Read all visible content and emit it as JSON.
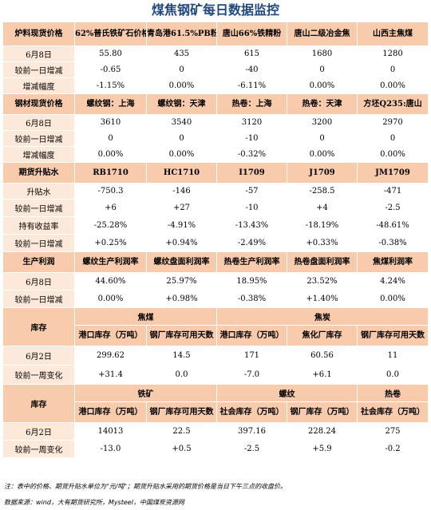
{
  "title": "煤焦钢矿每日数据监控",
  "spot1": {
    "header": [
      "炉料现货价格",
      "62%普氏铁矿石价格指数",
      "青岛港61.5%PB粉",
      "唐山66%铁精粉",
      "唐山二级冶金焦",
      "山西主焦煤"
    ],
    "rows": [
      [
        "6月8日",
        "55.80",
        "435",
        "615",
        "1680",
        "1280"
      ],
      [
        "较前一日增减",
        "-0.65",
        "0",
        "-40",
        "0",
        "0"
      ],
      [
        "增减幅度",
        "-1.15%",
        "0.00%",
        "-6.11%",
        "0.00%",
        "0.00%"
      ]
    ]
  },
  "spot2": {
    "header": [
      "钢材现货价格",
      "螺纹钢：上海",
      "螺纹钢：天津",
      "热卷：上海",
      "热卷：天津",
      "方坯Q235:唐山"
    ],
    "rows": [
      [
        "6月8日",
        "3610",
        "3540",
        "3120",
        "3200",
        "2970"
      ],
      [
        "较前一日增减",
        "0",
        "0",
        "-10",
        "0",
        "0"
      ],
      [
        "增减幅度",
        "0.00%",
        "0.00%",
        "-0.32%",
        "0.00%",
        "0.00%"
      ]
    ]
  },
  "futures": {
    "header": [
      "期货升贴水",
      "RB1710",
      "HC1710",
      "I1709",
      "J1709",
      "JM1709"
    ],
    "rows": [
      [
        "升贴水",
        "-750.3",
        "-146",
        "-57",
        "-258.5",
        "-471"
      ],
      [
        "较前一日增减",
        "+6",
        "+27",
        "-10",
        "+4",
        "-2.5"
      ],
      [
        "持有收益率",
        "-25.28%",
        "-4.91%",
        "-13.43%",
        "-18.19%",
        "-48.61%"
      ],
      [
        "较前一日增减",
        "+0.25%",
        "+0.94%",
        "-2.49%",
        "+0.33%",
        "-0.38%"
      ]
    ]
  },
  "profit": {
    "header": [
      "生产利润",
      "螺纹生产利润率",
      "螺纹盘面利润率",
      "热卷生产利润率",
      "热卷盘面利润率",
      "焦煤利润率"
    ],
    "rows": [
      [
        "6月8日",
        "44.60%",
        "25.97%",
        "18.95%",
        "23.52%",
        "4.24%"
      ],
      [
        "较前一日增减",
        "0.00%",
        "+0.98%",
        "-0.38%",
        "+1.40%",
        "0.00%"
      ]
    ]
  },
  "stock1": {
    "section": "库存",
    "groups": [
      "焦煤",
      "焦炭"
    ],
    "header": [
      "港口库存（万吨）",
      "钢厂库存可用天数",
      "港口库存（万吨）",
      "焦化厂库存",
      "钢厂库存可用天数"
    ],
    "rows": [
      [
        "6月2日",
        "299.62",
        "14.5",
        "171",
        "60.56",
        "11"
      ],
      [
        "较前一周变化",
        "+31.4",
        "0.0",
        "-7.0",
        "+6.1",
        "0.0"
      ]
    ]
  },
  "stock2": {
    "section": "库存",
    "groups": [
      "铁矿",
      "螺纹",
      "热卷"
    ],
    "header": [
      "港口库存（万吨）",
      "钢厂库存可用天数",
      "社会库存（万吨）",
      "钢厂库存（万吨）",
      "社会库存（万吨）"
    ],
    "rows": [
      [
        "6月2日",
        "14013",
        "22.5",
        "397.16",
        "228.24",
        "275"
      ],
      [
        "较前一周变化",
        "-13.0",
        "+0.5",
        "-2.5",
        "+5.9",
        "-0.2"
      ]
    ]
  },
  "note": "注：表中的价格、期货升贴水单位为\"元/吨\"；期货升贴水采用的期货价格是当日下午三点的收盘价。",
  "source": "数据来源：wind，大有期货研究所，Mysteel，中国煤炭资源网",
  "colors": {
    "header_bg": "#f8cbad",
    "label_bg": "#fde9d9",
    "up": "#ff0000",
    "down": "#00b050",
    "title": "#1f497d"
  }
}
